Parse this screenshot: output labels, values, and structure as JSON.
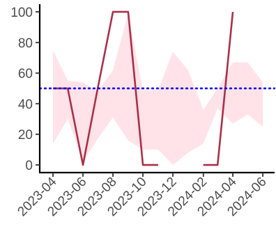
{
  "chart_data": {
    "type": "line",
    "title": "",
    "xlabel": "",
    "ylabel": "",
    "ylim": [
      -5,
      105
    ],
    "y_ticks": [
      0,
      20,
      40,
      60,
      80,
      100
    ],
    "x_ticks": [
      "2023-04",
      "2023-06",
      "2023-08",
      "2023-10",
      "2023-12",
      "2024-02",
      "2024-04",
      "2024-06"
    ],
    "x_range": [
      "2023-03-05",
      "2024-06-25"
    ],
    "grid": false,
    "legend": "none",
    "series": [
      {
        "color": "#a8243f",
        "values": [
          {
            "x": "2023-04-01",
            "y": 50
          },
          {
            "x": "2023-05-01",
            "y": 50
          },
          {
            "x": "2023-06-01",
            "y": 0
          },
          {
            "x": "2023-07-01",
            "y": 50
          },
          {
            "x": "2023-08-01",
            "y": 100
          },
          {
            "x": "2023-09-01",
            "y": 100
          },
          {
            "x": "2023-10-01",
            "y": 0
          },
          {
            "x": "2023-11-01",
            "y": 0
          },
          {
            "x": "2023-12-01",
            "y": null
          },
          {
            "x": "2024-01-01",
            "y": null
          },
          {
            "x": "2024-02-01",
            "y": 0
          },
          {
            "x": "2024-03-01",
            "y": 0
          },
          {
            "x": "2024-04-01",
            "y": 100
          }
        ]
      }
    ],
    "band": {
      "color": "#ffc0cb",
      "opacity": 0.45,
      "values": [
        {
          "x": "2023-04-01",
          "lower": 14,
          "upper": 75
        },
        {
          "x": "2023-05-01",
          "lower": 30,
          "upper": 55
        },
        {
          "x": "2023-06-01",
          "lower": 2,
          "upper": 54
        },
        {
          "x": "2023-07-01",
          "lower": 17,
          "upper": 48
        },
        {
          "x": "2023-08-01",
          "lower": 31,
          "upper": 62
        },
        {
          "x": "2023-09-01",
          "lower": 16,
          "upper": 99
        },
        {
          "x": "2023-10-01",
          "lower": 10,
          "upper": 49
        },
        {
          "x": "2023-11-01",
          "lower": 10,
          "upper": 49
        },
        {
          "x": "2023-12-01",
          "lower": 0,
          "upper": 74
        },
        {
          "x": "2024-01-01",
          "lower": 8,
          "upper": 62
        },
        {
          "x": "2024-02-01",
          "lower": 14,
          "upper": 36
        },
        {
          "x": "2024-03-01",
          "lower": 37,
          "upper": 50
        },
        {
          "x": "2024-04-01",
          "lower": 27,
          "upper": 67
        },
        {
          "x": "2024-05-01",
          "lower": 33,
          "upper": 67
        },
        {
          "x": "2024-06-01",
          "lower": 25,
          "upper": 54
        }
      ]
    },
    "reference_line": {
      "y": 50,
      "color": "#0000ff",
      "style": "dotted"
    }
  }
}
